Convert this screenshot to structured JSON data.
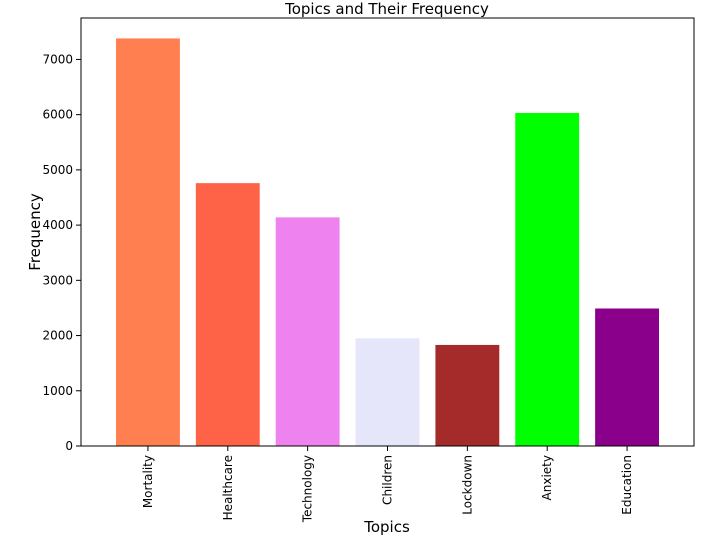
{
  "chart_data": {
    "type": "bar",
    "title": "Topics and Their Frequency",
    "xlabel": "Topics",
    "ylabel": "Frequency",
    "categories": [
      "Mortality",
      "Healthcare",
      "Technology",
      "Children",
      "Lockdown",
      "Anxiety",
      "Education"
    ],
    "values": [
      7380,
      4760,
      4140,
      1950,
      1830,
      6030,
      2490
    ],
    "colors": [
      "#ff7f50",
      "#ff6347",
      "#ee82ee",
      "#e6e6fa",
      "#a52a2a",
      "#00ff00",
      "#8b008b"
    ],
    "ylim": [
      0,
      7750
    ],
    "yticks": [
      0,
      1000,
      2000,
      3000,
      4000,
      5000,
      6000,
      7000
    ],
    "ytick_labels": [
      "0",
      "1000",
      "2000",
      "3000",
      "4000",
      "5000",
      "6000",
      "7000"
    ],
    "grid": false,
    "legend": "none"
  }
}
